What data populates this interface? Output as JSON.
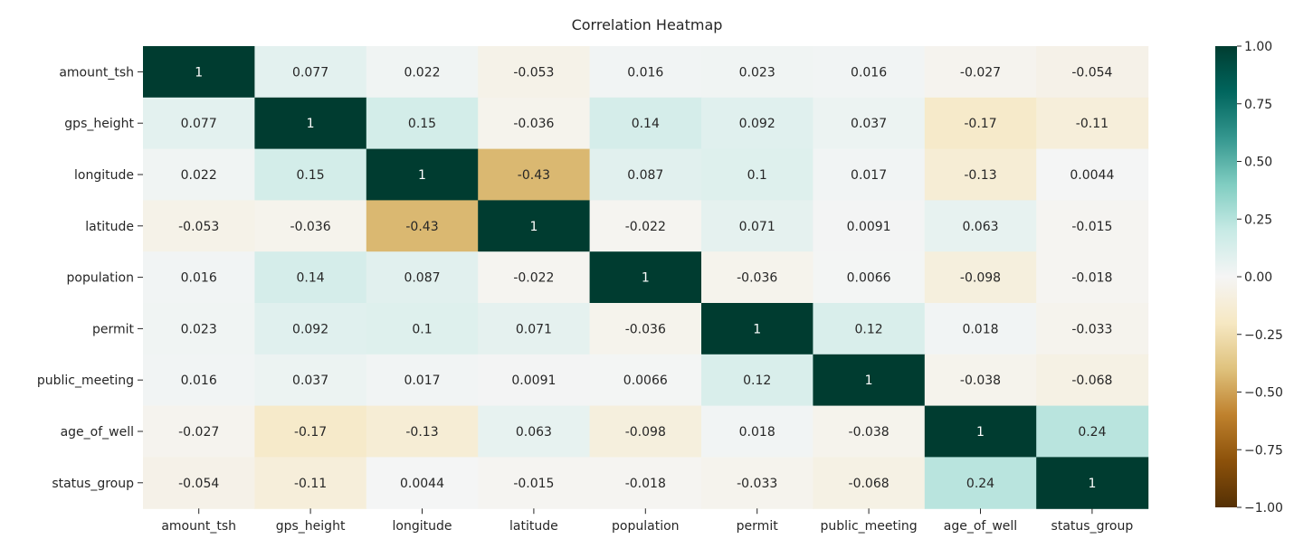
{
  "chart_data": {
    "type": "heatmap",
    "title": "Correlation Heatmap",
    "xlabel": "",
    "ylabel": "",
    "variables": [
      "amount_tsh",
      "gps_height",
      "longitude",
      "latitude",
      "population",
      "permit",
      "public_meeting",
      "age_of_well",
      "status_group"
    ],
    "matrix": [
      [
        1,
        0.077,
        0.022,
        -0.053,
        0.016,
        0.023,
        0.016,
        -0.027,
        -0.054
      ],
      [
        0.077,
        1,
        0.15,
        -0.036,
        0.14,
        0.092,
        0.037,
        -0.17,
        -0.11
      ],
      [
        0.022,
        0.15,
        1,
        -0.43,
        0.087,
        0.1,
        0.017,
        -0.13,
        0.0044
      ],
      [
        -0.053,
        -0.036,
        -0.43,
        1,
        -0.022,
        0.071,
        0.0091,
        0.063,
        -0.015
      ],
      [
        0.016,
        0.14,
        0.087,
        -0.022,
        1,
        -0.036,
        0.0066,
        -0.098,
        -0.018
      ],
      [
        0.023,
        0.092,
        0.1,
        0.071,
        -0.036,
        1,
        0.12,
        0.018,
        -0.033
      ],
      [
        0.016,
        0.037,
        0.017,
        0.0091,
        0.0066,
        0.12,
        1,
        -0.038,
        -0.068
      ],
      [
        -0.027,
        -0.17,
        -0.13,
        0.063,
        -0.098,
        0.018,
        -0.038,
        1,
        0.24
      ],
      [
        -0.054,
        -0.11,
        0.0044,
        -0.015,
        -0.018,
        -0.033,
        -0.068,
        0.24,
        1
      ]
    ],
    "cell_labels": [
      [
        "1",
        "0.077",
        "0.022",
        "-0.053",
        "0.016",
        "0.023",
        "0.016",
        "-0.027",
        "-0.054"
      ],
      [
        "0.077",
        "1",
        "0.15",
        "-0.036",
        "0.14",
        "0.092",
        "0.037",
        "-0.17",
        "-0.11"
      ],
      [
        "0.022",
        "0.15",
        "1",
        "-0.43",
        "0.087",
        "0.1",
        "0.017",
        "-0.13",
        "0.0044"
      ],
      [
        "-0.053",
        "-0.036",
        "-0.43",
        "1",
        "-0.022",
        "0.071",
        "0.0091",
        "0.063",
        "-0.015"
      ],
      [
        "0.016",
        "0.14",
        "0.087",
        "-0.022",
        "1",
        "-0.036",
        "0.0066",
        "-0.098",
        "-0.018"
      ],
      [
        "0.023",
        "0.092",
        "0.1",
        "0.071",
        "-0.036",
        "1",
        "0.12",
        "0.018",
        "-0.033"
      ],
      [
        "0.016",
        "0.037",
        "0.017",
        "0.0091",
        "0.0066",
        "0.12",
        "1",
        "-0.038",
        "-0.068"
      ],
      [
        "-0.027",
        "-0.17",
        "-0.13",
        "0.063",
        "-0.098",
        "0.018",
        "-0.038",
        "1",
        "0.24"
      ],
      [
        "-0.054",
        "-0.11",
        "0.0044",
        "-0.015",
        "-0.018",
        "-0.033",
        "-0.068",
        "0.24",
        "1"
      ]
    ],
    "colormap": "BrBG",
    "vmin": -1,
    "vmax": 1,
    "colorbar_ticks": [
      1,
      0.75,
      0.5,
      0.25,
      0,
      -0.25,
      -0.5,
      -0.75,
      -1
    ],
    "colorbar_tick_labels": [
      "1.00",
      "0.75",
      "0.50",
      "0.25",
      "0.00",
      "−0.25",
      "−0.50",
      "−0.75",
      "−1.00"
    ],
    "colors": {
      "stops": [
        [
          0.0,
          "#543005"
        ],
        [
          0.1,
          "#8c510a"
        ],
        [
          0.2,
          "#bf812d"
        ],
        [
          0.3,
          "#dfc27d"
        ],
        [
          0.4,
          "#f6e8c3"
        ],
        [
          0.5,
          "#f5f5f5"
        ],
        [
          0.6,
          "#c7eae5"
        ],
        [
          0.7,
          "#80cdc1"
        ],
        [
          0.8,
          "#35978f"
        ],
        [
          0.9,
          "#01665e"
        ],
        [
          1.0,
          "#003c30"
        ]
      ],
      "dark_text": "#262626",
      "light_text": "#ffffff"
    },
    "grid": false,
    "legend": "colorbar-right"
  }
}
